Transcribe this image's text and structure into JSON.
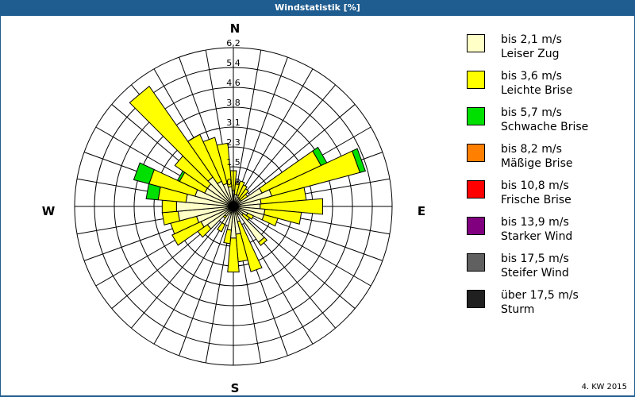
{
  "window": {
    "title": "Windstatistik [%]"
  },
  "footer": {
    "label": "4. KW 2015"
  },
  "compass": {
    "n": "N",
    "e": "E",
    "s": "S",
    "w": "W"
  },
  "legend": [
    {
      "range": "bis 2,1 m/s",
      "name": "Leiser Zug",
      "color": "#ffffc8"
    },
    {
      "range": "bis 3,6 m/s",
      "name": "Leichte Brise",
      "color": "#ffff00"
    },
    {
      "range": "bis 5,7 m/s",
      "name": "Schwache Brise",
      "color": "#00e000"
    },
    {
      "range": "bis 8,2 m/s",
      "name": "Mäßige Brise",
      "color": "#ff8000"
    },
    {
      "range": "bis 10,8 m/s",
      "name": "Frische Brise",
      "color": "#ff0000"
    },
    {
      "range": "bis 13,9 m/s",
      "name": "Starker Wind",
      "color": "#800080"
    },
    {
      "range": "bis 17,5 m/s",
      "name": "Steifer Wind",
      "color": "#606060"
    },
    {
      "range": "über 17,5 m/s",
      "name": "Sturm",
      "color": "#202020"
    }
  ],
  "chart_data": {
    "type": "windrose",
    "title": "Windstatistik [%]",
    "subtitle": "4. KW 2015",
    "unit": "%",
    "ring_labels": [
      "0,8",
      "1,5",
      "2,3",
      "3,1",
      "3,8",
      "4,6",
      "5,4",
      "6,2"
    ],
    "rmax": 6.2,
    "sector_width_deg": 10,
    "directions_deg": [
      0,
      10,
      20,
      30,
      40,
      50,
      60,
      70,
      80,
      90,
      100,
      110,
      120,
      130,
      140,
      150,
      160,
      170,
      180,
      190,
      200,
      210,
      220,
      230,
      240,
      250,
      260,
      270,
      280,
      290,
      300,
      310,
      320,
      330,
      340,
      350
    ],
    "series": [
      {
        "name": "bis 2,1 m/s Leiser Zug",
        "color": "#ffffc8",
        "values": [
          0.62,
          0.47,
          0.47,
          0.4,
          0.37,
          0.37,
          1.24,
          1.55,
          1.09,
          1.05,
          1.24,
          1.24,
          0.62,
          0.47,
          1.71,
          0.31,
          0.62,
          1.09,
          1.24,
          0.93,
          0.25,
          0.78,
          0.47,
          1.24,
          1.4,
          1.49,
          2.17,
          2.23,
          1.86,
          1.55,
          1.24,
          1.24,
          1.4,
          1.09,
          0.93,
          0.78
        ]
      },
      {
        "name": "bis 3,6 m/s Leichte Brise",
        "color": "#ffff00",
        "values": [
          0.78,
          0.46,
          0.56,
          0.53,
          0.47,
          0.31,
          2.54,
          3.57,
          1.77,
          2.45,
          1.43,
          0.56,
          0.25,
          0.31,
          0.15,
          0.06,
          2.02,
          1.08,
          1.33,
          0.53,
          0.06,
          0.31,
          0.09,
          0.46,
          1.24,
          1.05,
          0.62,
          0.56,
          1.09,
          1.86,
          1.08,
          1.55,
          4.33,
          2.01,
          1.86,
          1.7
        ]
      },
      {
        "name": "bis 5,7 m/s Schwache Brise",
        "color": "#00e000",
        "values": [
          0,
          0,
          0,
          0,
          0,
          0,
          0.25,
          0.22,
          0,
          0,
          0,
          0,
          0,
          0,
          0,
          0,
          0,
          0,
          0,
          0,
          0,
          0,
          0,
          0,
          0,
          0,
          0,
          0,
          0.47,
          0.62,
          0.09,
          0,
          0,
          0,
          0,
          0
        ]
      },
      {
        "name": "bis 8,2 m/s Mäßige Brise",
        "color": "#ff8000",
        "values": [
          0,
          0,
          0,
          0,
          0,
          0,
          0,
          0,
          0,
          0,
          0,
          0,
          0,
          0,
          0,
          0,
          0,
          0,
          0,
          0,
          0,
          0,
          0,
          0,
          0,
          0,
          0,
          0,
          0,
          0,
          0,
          0,
          0,
          0,
          0,
          0
        ]
      },
      {
        "name": "bis 10,8 m/s Frische Brise",
        "color": "#ff0000",
        "values": [
          0,
          0,
          0,
          0,
          0,
          0,
          0,
          0,
          0,
          0,
          0,
          0,
          0,
          0,
          0,
          0,
          0,
          0,
          0,
          0,
          0,
          0,
          0,
          0,
          0,
          0,
          0,
          0,
          0,
          0,
          0,
          0,
          0,
          0,
          0,
          0
        ]
      },
      {
        "name": "bis 13,9 m/s Starker Wind",
        "color": "#800080",
        "values": [
          0,
          0,
          0,
          0,
          0,
          0,
          0,
          0,
          0,
          0,
          0,
          0,
          0,
          0,
          0,
          0,
          0,
          0,
          0,
          0,
          0,
          0,
          0,
          0,
          0,
          0,
          0,
          0,
          0,
          0,
          0,
          0,
          0,
          0,
          0,
          0
        ]
      },
      {
        "name": "bis 17,5 m/s Steifer Wind",
        "color": "#606060",
        "values": [
          0,
          0,
          0,
          0,
          0,
          0,
          0,
          0,
          0,
          0,
          0,
          0,
          0,
          0,
          0,
          0,
          0,
          0,
          0,
          0,
          0,
          0,
          0,
          0,
          0,
          0,
          0,
          0,
          0,
          0,
          0,
          0,
          0,
          0,
          0,
          0
        ]
      },
      {
        "name": "über 17,5 m/s Sturm",
        "color": "#202020",
        "values": [
          0,
          0,
          0,
          0,
          0,
          0,
          0,
          0,
          0,
          0,
          0,
          0,
          0,
          0,
          0,
          0,
          0,
          0,
          0,
          0,
          0,
          0,
          0,
          0,
          0,
          0,
          0,
          0,
          0,
          0,
          0,
          0,
          0,
          0,
          0,
          0
        ]
      }
    ],
    "grid": true,
    "legend_position": "right"
  }
}
